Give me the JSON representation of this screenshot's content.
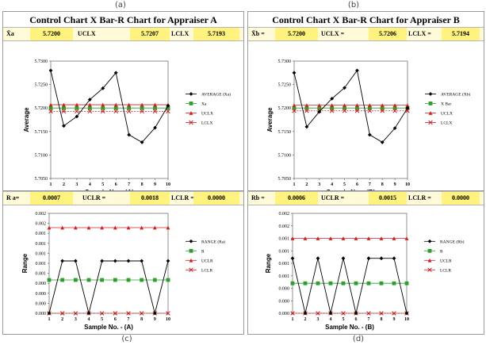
{
  "captions": [
    "(a)",
    "(b)",
    "(c)",
    "(d)"
  ],
  "panelA": {
    "title": "Control Chart X Bar-R Chart for Appraiser A",
    "stats": {
      "lbl": "X̄a",
      "val": "5.7200",
      "ucl_lbl": "UCLX",
      "ucl": "5.7207",
      "lcl_lbl": "LCLX",
      "lcl": "5.7193"
    }
  },
  "panelB": {
    "title": "Control Chart X Bar-R Chart for Appraiser B",
    "stats": {
      "lbl": "X̄b =",
      "val": "5.7200",
      "ucl_lbl": "UCLX =",
      "ucl": "5.7206",
      "lcl_lbl": "LCLX =",
      "lcl": "5.7194"
    }
  },
  "panelC": {
    "stats": {
      "lbl": "R a=",
      "val": "0.0007",
      "ucl_lbl": "UCLR =",
      "ucl": "0.0018",
      "lcl_lbl": "LCLR =",
      "lcl": "0.0000"
    }
  },
  "panelD": {
    "stats": {
      "lbl": "Rb =",
      "val": "0.0006",
      "ucl_lbl": "UCLR =",
      "ucl": "0.0015",
      "lcl_lbl": "LCLR =",
      "lcl": "0.0000"
    }
  },
  "chart_data": [
    {
      "type": "line",
      "xlabel": "Sample No. - (A)",
      "ylabel": "Average",
      "x": [
        1,
        2,
        3,
        4,
        5,
        6,
        7,
        8,
        9,
        10
      ],
      "ylim": [
        5.705,
        5.73
      ],
      "yticks": [
        "5.7300",
        "5.7250",
        "5.7200",
        "5.7150",
        "5.7100",
        "5.7050"
      ],
      "series": [
        {
          "name": "AVERAGE (Xa)",
          "color": "#000000",
          "marker": "diamond",
          "values": [
            5.728,
            5.7162,
            5.7182,
            5.7218,
            5.7242,
            5.7275,
            5.7143,
            5.7127,
            5.7158,
            5.7205
          ]
        },
        {
          "name": "Xa",
          "color": "#2e9e2e",
          "marker": "square",
          "values": [
            5.72,
            5.72,
            5.72,
            5.72,
            5.72,
            5.72,
            5.72,
            5.72,
            5.72,
            5.72
          ]
        },
        {
          "name": "UCLX",
          "color": "#cc2222",
          "marker": "triangle",
          "values": [
            5.7207,
            5.7207,
            5.7207,
            5.7207,
            5.7207,
            5.7207,
            5.7207,
            5.7207,
            5.7207,
            5.7207
          ]
        },
        {
          "name": "LCLX",
          "color": "#cc2222",
          "marker": "cross",
          "values": [
            5.7193,
            5.7193,
            5.7193,
            5.7193,
            5.7193,
            5.7193,
            5.7193,
            5.7193,
            5.7193,
            5.7193
          ]
        }
      ],
      "legend": "right"
    },
    {
      "type": "line",
      "xlabel": "Sample No. - (B)",
      "ylabel": "Average",
      "x": [
        1,
        2,
        3,
        4,
        5,
        6,
        7,
        8,
        9,
        10
      ],
      "ylim": [
        5.705,
        5.73
      ],
      "yticks": [
        "5.7300",
        "5.7250",
        "5.7200",
        "5.7150",
        "5.7100",
        "5.7050"
      ],
      "series": [
        {
          "name": "AVERAGE (Xb)",
          "color": "#000000",
          "marker": "diamond",
          "values": [
            5.7275,
            5.716,
            5.7192,
            5.722,
            5.7243,
            5.728,
            5.7143,
            5.7127,
            5.7157,
            5.72
          ]
        },
        {
          "name": "X Bar",
          "color": "#2e9e2e",
          "marker": "square",
          "values": [
            5.72,
            5.72,
            5.72,
            5.72,
            5.72,
            5.72,
            5.72,
            5.72,
            5.72,
            5.72
          ]
        },
        {
          "name": "UCLX",
          "color": "#cc2222",
          "marker": "triangle",
          "values": [
            5.7206,
            5.7206,
            5.7206,
            5.7206,
            5.7206,
            5.7206,
            5.7206,
            5.7206,
            5.7206,
            5.7206
          ]
        },
        {
          "name": "LCLX",
          "color": "#cc2222",
          "marker": "cross",
          "values": [
            5.7194,
            5.7194,
            5.7194,
            5.7194,
            5.7194,
            5.7194,
            5.7194,
            5.7194,
            5.7194,
            5.7194
          ]
        }
      ],
      "legend": "right"
    },
    {
      "type": "line",
      "xlabel": "Sample No. - (A)",
      "ylabel": "Range",
      "x": [
        1,
        2,
        3,
        4,
        5,
        6,
        7,
        8,
        9,
        10
      ],
      "ylim": [
        0,
        0.0021
      ],
      "yticks": [
        "0.002",
        "0.002",
        "0.001",
        "0.001",
        "0.001",
        "0.001",
        "0.001",
        "0.000",
        "0.000",
        "0.000",
        "0.000"
      ],
      "series": [
        {
          "name": "RANGE (Ra)",
          "color": "#000000",
          "marker": "diamond",
          "values": [
            0.0,
            0.0011,
            0.0011,
            0.0,
            0.0011,
            0.0011,
            0.0011,
            0.0011,
            0.0,
            0.0011
          ]
        },
        {
          "name": "R",
          "color": "#2e9e2e",
          "marker": "square",
          "values": [
            0.0007,
            0.0007,
            0.0007,
            0.0007,
            0.0007,
            0.0007,
            0.0007,
            0.0007,
            0.0007,
            0.0007
          ]
        },
        {
          "name": "UCLR",
          "color": "#cc2222",
          "marker": "triangle",
          "values": [
            0.0018,
            0.0018,
            0.0018,
            0.0018,
            0.0018,
            0.0018,
            0.0018,
            0.0018,
            0.0018,
            0.0018
          ]
        },
        {
          "name": "LCLR",
          "color": "#cc2222",
          "marker": "cross",
          "values": [
            0,
            0,
            0,
            0,
            0,
            0,
            0,
            0,
            0,
            0
          ]
        }
      ],
      "legend": "right"
    },
    {
      "type": "line",
      "xlabel": "Sample No. - (B)",
      "ylabel": "Range",
      "x": [
        1,
        2,
        3,
        4,
        5,
        6,
        7,
        8,
        9,
        10
      ],
      "ylim": [
        0,
        0.002
      ],
      "yticks": [
        "0.002",
        "0.002",
        "0.001",
        "0.001",
        "0.001",
        "0.001",
        "0.000",
        "0.000",
        "0.000"
      ],
      "series": [
        {
          "name": "RANGE (Rb)",
          "color": "#000000",
          "marker": "diamond",
          "values": [
            0.0011,
            0.0,
            0.0011,
            0.0,
            0.0011,
            0.0,
            0.0011,
            0.0011,
            0.0011,
            0.0
          ]
        },
        {
          "name": "R",
          "color": "#2e9e2e",
          "marker": "square",
          "values": [
            0.0006,
            0.0006,
            0.0006,
            0.0006,
            0.0006,
            0.0006,
            0.0006,
            0.0006,
            0.0006,
            0.0006
          ]
        },
        {
          "name": "UCLR",
          "color": "#cc2222",
          "marker": "triangle",
          "values": [
            0.0015,
            0.0015,
            0.0015,
            0.0015,
            0.0015,
            0.0015,
            0.0015,
            0.0015,
            0.0015,
            0.0015
          ]
        },
        {
          "name": "LCLR",
          "color": "#cc2222",
          "marker": "cross",
          "values": [
            0,
            0,
            0,
            0,
            0,
            0,
            0,
            0,
            0,
            0
          ]
        }
      ],
      "legend": "right"
    }
  ]
}
